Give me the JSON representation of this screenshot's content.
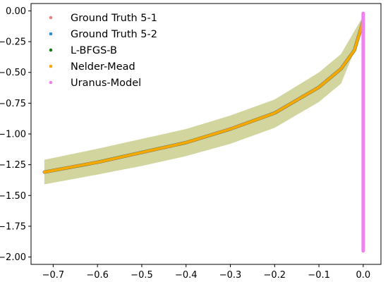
{
  "chart_data": {
    "type": "scatter",
    "title": "",
    "xlabel": "",
    "ylabel": "",
    "xlim": [
      -0.75,
      0.04
    ],
    "ylim": [
      -2.06,
      0.06
    ],
    "xticks": [
      -0.7,
      -0.6,
      -0.5,
      -0.4,
      -0.3,
      -0.2,
      -0.1,
      0.0
    ],
    "xtick_labels": [
      "−0.7",
      "−0.6",
      "−0.5",
      "−0.4",
      "−0.3",
      "−0.2",
      "−0.1",
      "0.0"
    ],
    "yticks": [
      0.0,
      -0.25,
      -0.5,
      -0.75,
      -1.0,
      -1.25,
      -1.5,
      -1.75,
      -2.0
    ],
    "ytick_labels": [
      "0.00",
      "−0.25",
      "−0.50",
      "−0.75",
      "−1.00",
      "−1.25",
      "−1.50",
      "−1.75",
      "−2.00"
    ],
    "grid": false,
    "legend_position": "top-left",
    "band": {
      "color": "#bcbf6a",
      "points": [
        {
          "x": -0.72,
          "lower": -1.41,
          "upper": -1.21
        },
        {
          "x": -0.6,
          "lower": -1.33,
          "upper": -1.12
        },
        {
          "x": -0.5,
          "lower": -1.26,
          "upper": -1.04
        },
        {
          "x": -0.4,
          "lower": -1.18,
          "upper": -0.96
        },
        {
          "x": -0.3,
          "lower": -1.08,
          "upper": -0.85
        },
        {
          "x": -0.2,
          "lower": -0.95,
          "upper": -0.72
        },
        {
          "x": -0.1,
          "lower": -0.74,
          "upper": -0.5
        },
        {
          "x": -0.05,
          "lower": -0.59,
          "upper": -0.35
        },
        {
          "x": 0.0,
          "lower": -0.15,
          "upper": -0.04
        }
      ]
    },
    "curve": [
      {
        "x": -0.72,
        "y": -1.31
      },
      {
        "x": -0.6,
        "y": -1.23
      },
      {
        "x": -0.5,
        "y": -1.15
      },
      {
        "x": -0.4,
        "y": -1.07
      },
      {
        "x": -0.3,
        "y": -0.96
      },
      {
        "x": -0.2,
        "y": -0.83
      },
      {
        "x": -0.1,
        "y": -0.62
      },
      {
        "x": -0.05,
        "y": -0.47
      },
      {
        "x": -0.02,
        "y": -0.32
      },
      {
        "x": 0.0,
        "y": -0.08
      }
    ],
    "series": [
      {
        "name": "Ground Truth 5-1",
        "color": "#e88383",
        "kind": "curve"
      },
      {
        "name": "Ground Truth 5-2",
        "color": "#2e8ccc",
        "kind": "curve"
      },
      {
        "name": "L-BFGS-B",
        "color": "#1a7a1a",
        "kind": "curve"
      },
      {
        "name": "Nelder-Mead",
        "color": "#f6a800",
        "kind": "curve"
      },
      {
        "name": "Uranus-Model",
        "color": "#ee82ee",
        "kind": "vertical",
        "x": 0.0,
        "y_range": [
          -1.95,
          -0.02
        ]
      }
    ]
  }
}
